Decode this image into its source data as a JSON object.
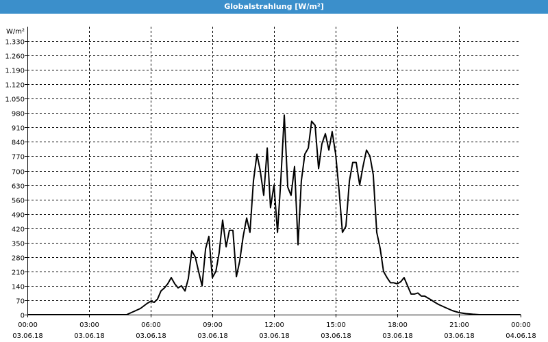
{
  "window": {
    "title": "Globalstrahlung [W/m²]"
  },
  "chart_data": {
    "type": "line",
    "title": "Globalstrahlung [W/m²]",
    "ylabel": "W/m²",
    "ylim": [
      0,
      1400
    ],
    "xlim_hours": [
      0,
      24
    ],
    "yticks": [
      0,
      70,
      140,
      210,
      280,
      350,
      420,
      490,
      560,
      630,
      700,
      770,
      840,
      910,
      980,
      1050,
      1120,
      1190,
      1260,
      1330
    ],
    "ytick_labels": [
      "0",
      "70",
      "140",
      "210",
      "280",
      "350",
      "420",
      "490",
      "560",
      "630",
      "700",
      "770",
      "840",
      "910",
      "980",
      "1.050",
      "1.120",
      "1.190",
      "1.260",
      "1.330"
    ],
    "xticks_hours": [
      0,
      3,
      6,
      9,
      12,
      15,
      18,
      21,
      24
    ],
    "xtick_time_labels": [
      "00:00",
      "03:00",
      "06:00",
      "09:00",
      "12:00",
      "15:00",
      "18:00",
      "21:00",
      "00:00"
    ],
    "xtick_date_labels": [
      "03.06.18",
      "03.06.18",
      "03.06.18",
      "03.06.18",
      "03.06.18",
      "03.06.18",
      "03.06.18",
      "03.06.18",
      "04.06.18"
    ],
    "grid": true,
    "line_color": "#000000",
    "series": [
      {
        "x": [
          0,
          4.83,
          5.17,
          5.5,
          5.83,
          6.0,
          6.17,
          6.33,
          6.5,
          6.67,
          6.83,
          7.0,
          7.17,
          7.33,
          7.5,
          7.67,
          7.83,
          8.0,
          8.17,
          8.33,
          8.5,
          8.67,
          8.83,
          9.0,
          9.17,
          9.33,
          9.5,
          9.67,
          9.83,
          10.0,
          10.17,
          10.33,
          10.5,
          10.67,
          10.83,
          11.0,
          11.17,
          11.33,
          11.5,
          11.67,
          11.83,
          12.0,
          12.17,
          12.33,
          12.5,
          12.67,
          12.83,
          13.0,
          13.17,
          13.33,
          13.5,
          13.67,
          13.83,
          14.0,
          14.17,
          14.33,
          14.5,
          14.67,
          14.83,
          15.0,
          15.17,
          15.33,
          15.5,
          15.67,
          15.83,
          16.0,
          16.17,
          16.33,
          16.5,
          16.67,
          16.83,
          17.0,
          17.17,
          17.33,
          17.5,
          17.67,
          17.83,
          18.0,
          18.17,
          18.33,
          18.5,
          18.67,
          18.83,
          19.0,
          19.17,
          19.33,
          19.5,
          19.67,
          19.83,
          20.0,
          20.33,
          20.67,
          21.0,
          21.33,
          21.67,
          22.0,
          24.0
        ],
        "y": [
          0,
          0,
          15,
          30,
          55,
          65,
          60,
          75,
          115,
          130,
          150,
          180,
          150,
          130,
          140,
          115,
          175,
          310,
          280,
          210,
          140,
          320,
          380,
          180,
          210,
          300,
          460,
          330,
          410,
          410,
          185,
          260,
          380,
          470,
          400,
          650,
          780,
          700,
          580,
          810,
          520,
          630,
          400,
          650,
          970,
          620,
          580,
          720,
          340,
          650,
          780,
          810,
          940,
          920,
          710,
          830,
          880,
          800,
          890,
          780,
          600,
          400,
          430,
          650,
          740,
          740,
          630,
          720,
          800,
          770,
          680,
          400,
          320,
          210,
          180,
          155,
          155,
          150,
          160,
          180,
          140,
          100,
          100,
          105,
          90,
          90,
          80,
          70,
          60,
          50,
          35,
          20,
          10,
          5,
          2,
          0,
          0
        ]
      }
    ]
  }
}
